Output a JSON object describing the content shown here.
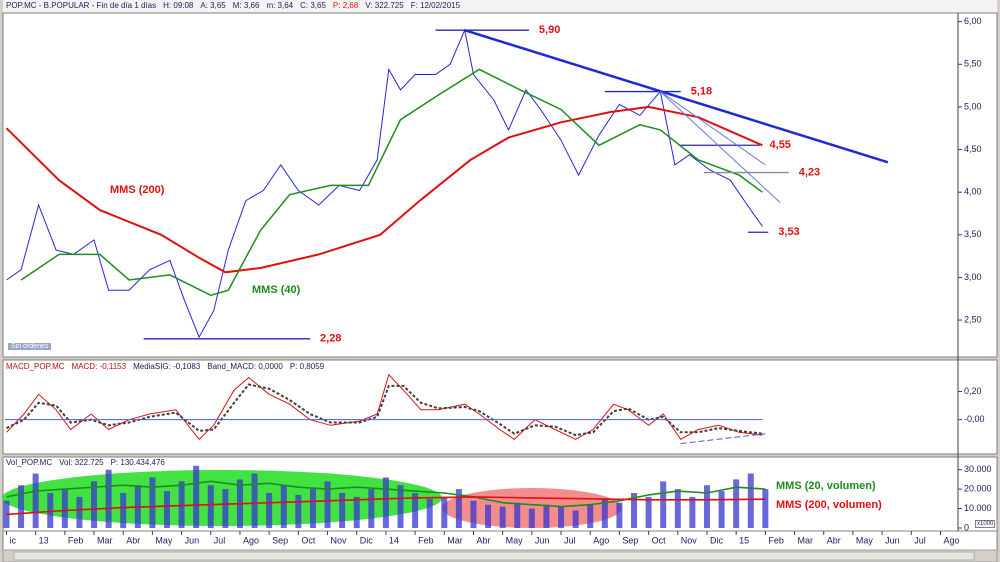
{
  "chart_data": [
    {
      "type": "line",
      "header": [
        {
          "text": "POP.MC - B.POPULAR - Fin de día 1 días",
          "color": "#202060"
        },
        {
          "text": "H: 09:08",
          "color": "#202060"
        },
        {
          "text": "A: 3,65",
          "color": "#202060"
        },
        {
          "text": "M: 3,66",
          "color": "#202060"
        },
        {
          "text": "m: 3,64",
          "color": "#202060"
        },
        {
          "text": "C: 3,65",
          "color": "#202060"
        },
        {
          "text": "P: 2,68",
          "color": "#e01010"
        },
        {
          "text": "V: 322.725",
          "color": "#202060"
        },
        {
          "text": "F: 12/02/2015",
          "color": "#202060"
        }
      ],
      "status": "Sin órdenes",
      "xlim": [
        -0.05,
        32.6
      ],
      "ylim": [
        2.09,
        6.09
      ],
      "yticks": [
        {
          "value": 2.5,
          "label": "2,50"
        },
        {
          "value": 3.0,
          "label": "3,00"
        },
        {
          "value": 3.5,
          "label": "3,50"
        },
        {
          "value": 4.0,
          "label": "4,00"
        },
        {
          "value": 4.5,
          "label": "4,50"
        },
        {
          "value": 5.0,
          "label": "5,00"
        },
        {
          "value": 5.5,
          "label": "5,50"
        },
        {
          "value": 6.0,
          "label": "6,00"
        }
      ],
      "series": [
        {
          "color": "#2626d9",
          "x": [
            0.0,
            0.5,
            1.1,
            1.7,
            2.3,
            3.0,
            3.5,
            4.2,
            4.9,
            5.6,
            6.1,
            6.6,
            7.1,
            7.6,
            8.2,
            8.8,
            9.4,
            10.0,
            10.7,
            11.4,
            12.1,
            12.7,
            13.1,
            13.5,
            14.0,
            14.7,
            15.2,
            15.7,
            16.0,
            16.7,
            17.2,
            17.8,
            18.3,
            19.0,
            19.6,
            20.3,
            21.0,
            21.7,
            22.4,
            22.9,
            23.4,
            24.1,
            24.8,
            25.5,
            25.9
          ],
          "values": [
            2.97,
            3.09,
            3.85,
            3.32,
            3.27,
            3.44,
            2.85,
            2.85,
            3.09,
            3.2,
            2.73,
            2.3,
            2.61,
            3.32,
            3.9,
            4.02,
            4.32,
            4.02,
            3.85,
            4.08,
            4.02,
            4.38,
            5.44,
            5.2,
            5.38,
            5.38,
            5.5,
            5.9,
            5.38,
            5.08,
            4.73,
            5.2,
            4.97,
            4.61,
            4.2,
            4.67,
            5.03,
            4.9,
            5.18,
            4.32,
            4.44,
            4.26,
            4.14,
            3.79,
            3.6
          ]
        },
        {
          "name": "MMS (200)",
          "color": "#e01010",
          "x": [
            0.0,
            1.8,
            3.2,
            5.3,
            6.6,
            7.5,
            8.7,
            10.7,
            12.8,
            14.2,
            15.9,
            17.2,
            19.0,
            20.7,
            22.0,
            23.7,
            25.1,
            25.9
          ],
          "values": [
            4.75,
            4.14,
            3.79,
            3.5,
            3.23,
            3.06,
            3.11,
            3.27,
            3.5,
            3.91,
            4.38,
            4.64,
            4.82,
            4.94,
            5.0,
            4.88,
            4.67,
            4.55
          ]
        },
        {
          "name": "MMS (40)",
          "color": "#1e8c1e",
          "x": [
            0.5,
            1.8,
            3.2,
            4.2,
            5.6,
            7.0,
            7.6,
            8.7,
            9.7,
            11.1,
            12.4,
            13.5,
            14.8,
            16.2,
            17.6,
            19.0,
            20.3,
            21.7,
            22.4,
            23.7,
            25.1,
            25.9
          ],
          "values": [
            2.97,
            3.27,
            3.27,
            2.97,
            3.03,
            2.79,
            2.85,
            3.55,
            3.97,
            4.08,
            4.08,
            4.85,
            5.14,
            5.44,
            5.2,
            4.97,
            4.55,
            4.79,
            4.73,
            4.38,
            4.2,
            4.0
          ]
        }
      ],
      "levels": [
        {
          "value": 2.28,
          "label": "2,28",
          "x": [
            4.7,
            10.4
          ],
          "color": "#2626b0"
        },
        {
          "value": 5.9,
          "label": "5,90",
          "x": [
            14.7,
            17.9
          ],
          "color": "#2626b0"
        },
        {
          "value": 5.18,
          "label": "5,18",
          "x": [
            20.5,
            23.1
          ],
          "color": "#2626b0"
        },
        {
          "value": 4.55,
          "label": "4,55",
          "x": [
            23.1,
            25.8
          ],
          "color": "#2626b0"
        },
        {
          "value": 4.23,
          "label": "4,23",
          "x": [
            23.9,
            26.8
          ],
          "color": "#8a8a9a"
        },
        {
          "value": 3.53,
          "label": "3,53",
          "x": [
            25.4,
            26.1
          ],
          "color": "#2626b0"
        }
      ],
      "lines": [
        {
          "x": [
            15.7,
            30.2
          ],
          "y": [
            5.9,
            4.35
          ],
          "color": "#1d2bd6"
        },
        {
          "x": [
            22.4,
            26.5
          ],
          "y": [
            5.18,
            3.88
          ],
          "color": "#6b78e0"
        },
        {
          "x": [
            22.4,
            26.0
          ],
          "y": [
            5.18,
            4.32
          ],
          "color": "#6b78e0"
        }
      ]
    },
    {
      "type": "line",
      "header": [
        {
          "text": "MACD_POP.MC",
          "color": "#b01010"
        },
        {
          "text": "MACD: -0,1153",
          "color": "#b01010"
        },
        {
          "text": "MediaSIG: -0,1083",
          "color": "#202060"
        },
        {
          "text": "Band_MACD: 0,0000",
          "color": "#202060"
        },
        {
          "text": "P: 0,8059",
          "color": "#202060"
        }
      ],
      "xlim": [
        -0.05,
        32.6
      ],
      "ylim": [
        -0.23,
        0.41
      ],
      "yticks": [
        {
          "value": 0.0,
          "label": "-0,00"
        },
        {
          "value": 0.2,
          "label": "0,20"
        }
      ],
      "series": [
        {
          "color": "#e01010",
          "x": [
            0.0,
            0.6,
            1.1,
            1.7,
            2.2,
            2.9,
            3.5,
            4.2,
            4.9,
            5.8,
            6.6,
            7.1,
            7.8,
            8.3,
            9.0,
            9.7,
            10.4,
            11.1,
            12.1,
            12.7,
            13.1,
            13.6,
            14.2,
            14.8,
            15.7,
            16.2,
            16.9,
            17.4,
            18.1,
            18.8,
            19.5,
            20.1,
            20.8,
            21.3,
            22.0,
            22.5,
            23.1,
            23.7,
            24.4,
            25.1,
            25.9
          ],
          "values": [
            -0.09,
            0.04,
            0.18,
            0.07,
            -0.07,
            0.04,
            -0.07,
            0,
            0.04,
            0.07,
            -0.14,
            -0.04,
            0.21,
            0.3,
            0.18,
            0.11,
            0,
            -0.04,
            -0.01,
            0.04,
            0.32,
            0.21,
            0.07,
            0.07,
            0.11,
            0.04,
            -0.07,
            -0.14,
            0,
            -0.07,
            -0.14,
            -0.07,
            0.11,
            0.07,
            -0.04,
            0.04,
            -0.14,
            -0.07,
            -0.04,
            -0.09,
            -0.11
          ]
        },
        {
          "color": "#404040",
          "dashed": true,
          "x": [
            0.0,
            0.6,
            1.1,
            1.7,
            2.2,
            2.9,
            3.5,
            4.2,
            4.9,
            5.8,
            6.6,
            7.1,
            7.8,
            8.3,
            9.0,
            9.7,
            10.4,
            11.1,
            12.1,
            12.7,
            13.1,
            13.6,
            14.2,
            14.8,
            15.7,
            16.2,
            16.9,
            17.4,
            18.1,
            18.8,
            19.5,
            20.1,
            20.8,
            21.3,
            22.0,
            22.5,
            23.1,
            23.7,
            24.4,
            25.1,
            25.9
          ],
          "values": [
            -0.06,
            0.0,
            0.12,
            0.1,
            -0.02,
            0.0,
            -0.04,
            -0.02,
            0.02,
            0.05,
            -0.08,
            -0.07,
            0.12,
            0.25,
            0.22,
            0.14,
            0.04,
            -0.02,
            -0.02,
            0.02,
            0.24,
            0.24,
            0.12,
            0.08,
            0.09,
            0.06,
            -0.03,
            -0.1,
            -0.04,
            -0.05,
            -0.11,
            -0.09,
            0.06,
            0.08,
            0.0,
            0.02,
            -0.09,
            -0.09,
            -0.06,
            -0.08,
            -0.1
          ]
        }
      ],
      "lines": [
        {
          "x": [
            -0.05,
            25.9
          ],
          "y": [
            0,
            0
          ],
          "color": "#4a5ae0"
        },
        {
          "x": [
            23.1,
            26.0
          ],
          "y": [
            -0.17,
            -0.1
          ],
          "color": "#4a5ae0",
          "dashed": true
        }
      ]
    },
    {
      "type": "bar",
      "header": [
        {
          "text": "Vol_POP.MC",
          "color": "#202060"
        },
        {
          "text": "Vol: 322.725",
          "color": "#202060"
        },
        {
          "text": "P: 130.434.476",
          "color": "#202060"
        }
      ],
      "unit_note": "x1000",
      "xlim": [
        -0.05,
        32.6
      ],
      "ylim": [
        0,
        36000
      ],
      "yticks": [
        0,
        {
          "value": 10000,
          "label": "10.000"
        },
        {
          "value": 20000,
          "label": "20.000"
        },
        {
          "value": 30000,
          "label": "30.000"
        }
      ],
      "xticks": [
        {
          "value": 0,
          "label": "ic"
        },
        {
          "value": 1,
          "label": "13"
        },
        {
          "value": 2,
          "label": "Feb"
        },
        {
          "value": 3,
          "label": "Mar"
        },
        {
          "value": 4,
          "label": "Abr"
        },
        {
          "value": 5,
          "label": "May"
        },
        {
          "value": 6,
          "label": "Jun"
        },
        {
          "value": 7,
          "label": "Jul"
        },
        {
          "value": 8,
          "label": "Ago"
        },
        {
          "value": 9,
          "label": "Sep"
        },
        {
          "value": 10,
          "label": "Oct"
        },
        {
          "value": 11,
          "label": "Nov"
        },
        {
          "value": 12,
          "label": "Dic"
        },
        {
          "value": 13,
          "label": "14"
        },
        {
          "value": 14,
          "label": "Feb"
        },
        {
          "value": 15,
          "label": "Mar"
        },
        {
          "value": 16,
          "label": "Abr"
        },
        {
          "value": 17,
          "label": "May"
        },
        {
          "value": 18,
          "label": "Jun"
        },
        {
          "value": 19,
          "label": "Jul"
        },
        {
          "value": 20,
          "label": "Ago"
        },
        {
          "value": 21,
          "label": "Sep"
        },
        {
          "value": 22,
          "label": "Oct"
        },
        {
          "value": 23,
          "label": "Nov"
        },
        {
          "value": 24,
          "label": "Dic"
        },
        {
          "value": 25,
          "label": "15"
        },
        {
          "value": 26,
          "label": "Feb"
        },
        {
          "value": 27,
          "label": "Mar"
        },
        {
          "value": 28,
          "label": "Abr"
        },
        {
          "value": 29,
          "label": "May"
        },
        {
          "value": 30,
          "label": "Jun"
        },
        {
          "value": 31,
          "label": "Jul"
        },
        {
          "value": 32,
          "label": "Ago"
        }
      ],
      "color": "#3636d0",
      "x": [
        0,
        0.5,
        1,
        1.5,
        2,
        2.5,
        3,
        3.5,
        4,
        4.5,
        5,
        5.5,
        6,
        6.5,
        7,
        7.5,
        8,
        8.5,
        9,
        9.5,
        10,
        10.5,
        11,
        11.5,
        12,
        12.5,
        13,
        13.5,
        14,
        14.5,
        15,
        15.5,
        16,
        16.5,
        17,
        17.5,
        18,
        18.5,
        19,
        19.5,
        20,
        20.5,
        21,
        21.5,
        22,
        22.5,
        23,
        23.5,
        24,
        24.5,
        25,
        25.5,
        26
      ],
      "values": [
        14000,
        22000,
        28000,
        18000,
        20000,
        16000,
        24000,
        30000,
        18000,
        22000,
        26000,
        19000,
        24000,
        32000,
        22000,
        20000,
        25000,
        28000,
        18000,
        22000,
        17000,
        20000,
        24000,
        18000,
        16000,
        20000,
        26000,
        22000,
        18000,
        15000,
        16000,
        20000,
        14000,
        12000,
        11000,
        13000,
        10000,
        12000,
        11000,
        9000,
        12000,
        15000,
        13000,
        18000,
        16000,
        24000,
        20000,
        16000,
        22000,
        19000,
        25000,
        28000,
        20000
      ],
      "series": [
        {
          "name": "MMS (20, volumen)",
          "color": "#1e8c1e",
          "x": [
            0,
            1,
            2,
            3,
            4,
            5,
            6,
            7,
            8,
            9,
            10,
            11,
            12,
            13,
            14,
            15,
            16,
            17,
            18,
            19,
            20,
            21,
            22,
            23,
            24,
            25,
            26
          ],
          "values": [
            16000,
            19000,
            20000,
            21000,
            22000,
            21000,
            22000,
            24000,
            22000,
            23000,
            21000,
            20000,
            21000,
            20000,
            19000,
            18000,
            16000,
            13000,
            12000,
            11000,
            12000,
            14000,
            17000,
            19000,
            18000,
            21000,
            20000
          ]
        },
        {
          "name": "MMS (200, volumen)",
          "color": "#e01010",
          "x": [
            0,
            2,
            4,
            6,
            8,
            10,
            12,
            14,
            16,
            18,
            20,
            22,
            24,
            26
          ],
          "values": [
            7000,
            9000,
            10500,
            11500,
            12500,
            13500,
            14500,
            15500,
            16000,
            15500,
            15000,
            14500,
            14500,
            14800
          ]
        }
      ]
    }
  ]
}
